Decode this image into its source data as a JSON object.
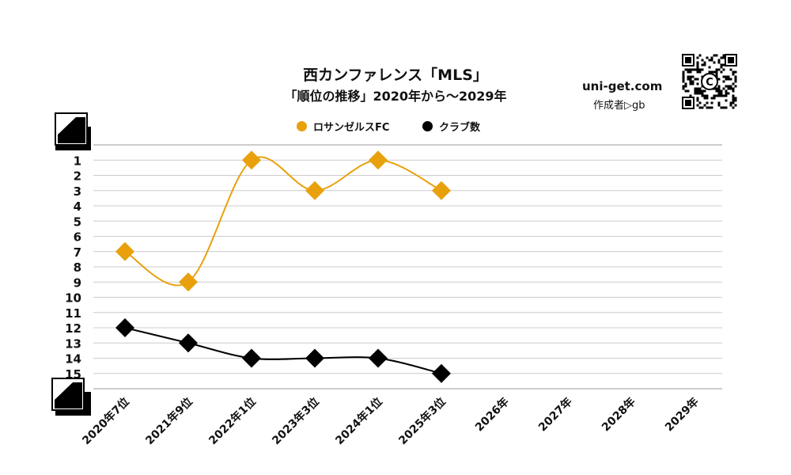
{
  "header": {
    "title": "西カンファレンス「MLS」",
    "subtitle": "「順位の推移」2020年から～2029年",
    "site": "uni-get.com",
    "author": "作成者▷gb",
    "qr_badge": "C"
  },
  "colors": {
    "series1": "#E8A10C",
    "series2": "#000000",
    "grid": "#cccccc",
    "axis": "#999999"
  },
  "chart_data": {
    "type": "line",
    "categories": [
      "2020年7位",
      "2021年9位",
      "2022年1位",
      "2023年3位",
      "2024年1位",
      "2025年3位",
      "2026年",
      "2027年",
      "2028年",
      "2029年"
    ],
    "series": [
      {
        "name": "ロサンゼルスFC",
        "values": [
          7,
          9,
          1,
          3,
          1,
          3,
          null,
          null,
          null,
          null
        ]
      },
      {
        "name": "クラブ数",
        "values": [
          12,
          13,
          14,
          14,
          14,
          15,
          null,
          null,
          null,
          null
        ]
      }
    ],
    "ylim": [
      0,
      16
    ],
    "y_reversed": true,
    "y_ticks": [
      "1",
      "2",
      "3",
      "4",
      "5",
      "6",
      "7",
      "8",
      "9",
      "10",
      "11",
      "12",
      "13",
      "14",
      "15"
    ],
    "legend_position": "top",
    "grid": true
  }
}
